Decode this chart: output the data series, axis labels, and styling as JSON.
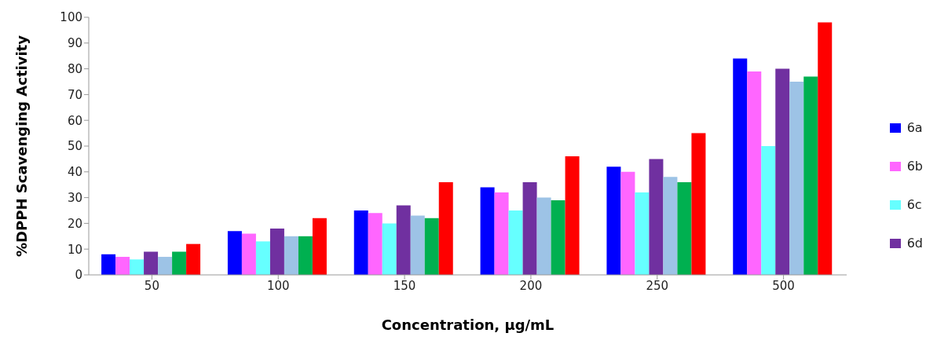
{
  "chart_data": {
    "type": "bar",
    "xlabel": "Concentration, µg/mL",
    "ylabel": "%DPPH Scavenging Activity",
    "categories": [
      "50",
      "100",
      "150",
      "200",
      "250",
      "500"
    ],
    "series": [
      {
        "name": "6a",
        "color": "#0000ff",
        "values": [
          8,
          17,
          25,
          34,
          42,
          84
        ]
      },
      {
        "name": "6b",
        "color": "#ff66ff",
        "values": [
          7,
          16,
          24,
          32,
          40,
          79
        ]
      },
      {
        "name": "6c",
        "color": "#66ffff",
        "values": [
          6,
          13,
          20,
          25,
          32,
          50
        ]
      },
      {
        "name": "6d",
        "color": "#7030a0",
        "values": [
          9,
          18,
          27,
          36,
          45,
          80
        ]
      },
      {
        "color": "#9dc3e6",
        "values": [
          7,
          15,
          23,
          30,
          38,
          75
        ]
      },
      {
        "color": "#00b050",
        "values": [
          9,
          15,
          22,
          29,
          36,
          77
        ]
      },
      {
        "color": "#ff0000",
        "values": [
          12,
          22,
          36,
          46,
          55,
          98
        ]
      }
    ],
    "ylim": [
      0,
      100
    ],
    "yticks": [
      0,
      10,
      20,
      30,
      40,
      50,
      60,
      70,
      80,
      90,
      100
    ],
    "grid": false,
    "legend": "right"
  }
}
